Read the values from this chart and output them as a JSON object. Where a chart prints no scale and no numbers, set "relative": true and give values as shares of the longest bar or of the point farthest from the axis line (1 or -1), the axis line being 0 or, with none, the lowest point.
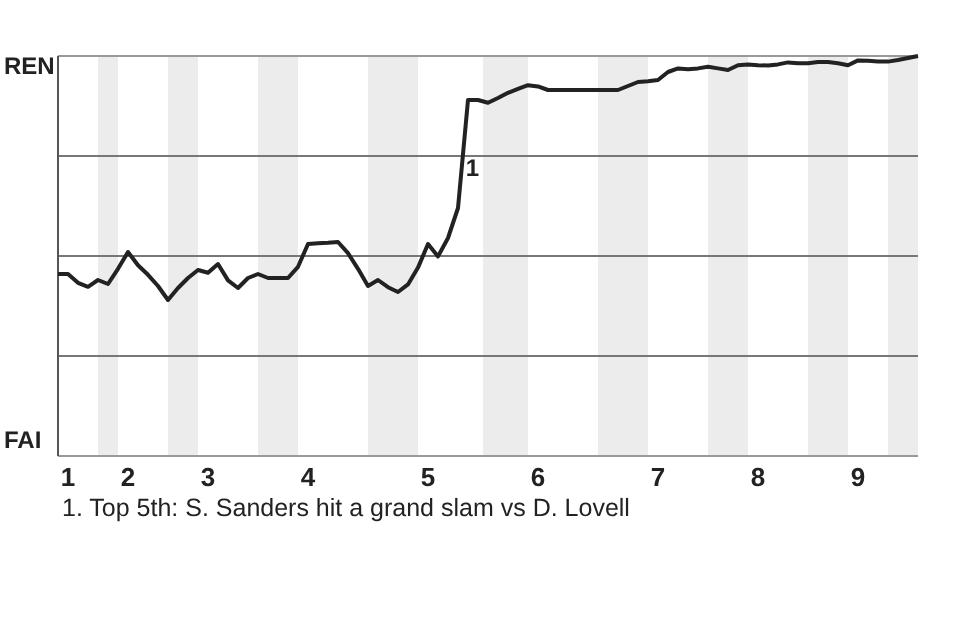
{
  "chart_data": {
    "type": "line",
    "relative": true,
    "categories": [
      null,
      "1",
      null,
      null,
      null,
      null,
      null,
      "2",
      null,
      null,
      null,
      null,
      null,
      null,
      null,
      "3",
      null,
      null,
      null,
      null,
      null,
      null,
      null,
      null,
      null,
      "4",
      null,
      null,
      null,
      null,
      null,
      null,
      null,
      null,
      null,
      null,
      null,
      "5",
      null,
      null,
      null,
      null,
      null,
      null,
      null,
      null,
      null,
      null,
      "6",
      null,
      null,
      null,
      null,
      null,
      null,
      null,
      null,
      null,
      null,
      null,
      "7",
      null,
      null,
      null,
      null,
      null,
      null,
      null,
      null,
      null,
      "8",
      null,
      null,
      null,
      null,
      null,
      null,
      null,
      null,
      null,
      "9",
      null,
      null,
      null,
      null,
      null,
      null
    ],
    "grid": "y",
    "marker": "none",
    "line_style": "solid",
    "series": [
      {
        "color": "#222222",
        "values": [
          0.455,
          0.455,
          0.433,
          0.423,
          0.44,
          0.43,
          0.468,
          0.51,
          0.477,
          0.453,
          0.425,
          0.39,
          0.42,
          0.445,
          0.465,
          0.458,
          0.48,
          0.439,
          0.42,
          0.445,
          0.455,
          0.445,
          0.445,
          0.445,
          0.473,
          0.53,
          0.532,
          0.533,
          0.535,
          0.507,
          0.468,
          0.425,
          0.44,
          0.422,
          0.41,
          0.429,
          0.471,
          0.53,
          0.499,
          0.545,
          0.62,
          0.89,
          0.89,
          0.883,
          0.895,
          0.908,
          0.918,
          0.927,
          0.924,
          0.915,
          0.915,
          0.915,
          0.915,
          0.915,
          0.915,
          0.915,
          0.915,
          0.925,
          0.935,
          0.937,
          0.94,
          0.96,
          0.969,
          0.967,
          0.969,
          0.973,
          0.969,
          0.965,
          0.977,
          0.979,
          0.977,
          0.976,
          0.979,
          0.984,
          0.982,
          0.982,
          0.985,
          0.985,
          0.982,
          0.977,
          0.989,
          0.988,
          0.986,
          0.986,
          0.99,
          0.995,
          1
        ]
      }
    ],
    "annotations": [
      "REN",
      "FAI",
      {
        "text": "1",
        "y": 0.72
      },
      "1. Top 5th: S. Sanders hit a grand slam vs D. Lovell"
    ]
  }
}
